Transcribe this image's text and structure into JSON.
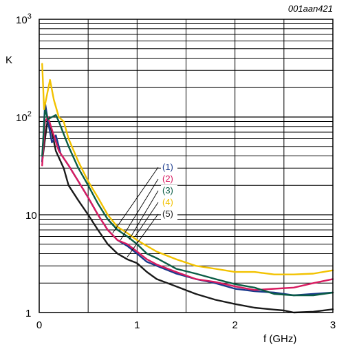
{
  "chart_data": {
    "type": "line",
    "figure_code": "001aan421",
    "xlabel": "f (GHz)",
    "ylabel": "K",
    "xlim": [
      0,
      3
    ],
    "ylim": [
      1,
      1000
    ],
    "yscale": "log",
    "grid": true,
    "x_ticks": [
      {
        "value": 0,
        "label": "0"
      },
      {
        "value": 1,
        "label": "1"
      },
      {
        "value": 2,
        "label": "2"
      },
      {
        "value": 3,
        "label": "3"
      }
    ],
    "y_ticks": [
      {
        "value": 1,
        "label": "1"
      },
      {
        "value": 10,
        "label": "10"
      },
      {
        "value": 100,
        "label": "10",
        "exp": "2"
      },
      {
        "value": 1000,
        "label": "10",
        "exp": "3"
      }
    ],
    "series": [
      {
        "name": "(1)",
        "color": "#1a3a8c",
        "x": [
          0.03,
          0.06,
          0.09,
          0.13,
          0.17,
          0.22,
          0.3,
          0.4,
          0.5,
          0.6,
          0.7,
          0.8,
          0.9,
          1.0,
          1.1,
          1.2,
          1.4,
          1.6,
          1.8,
          2.0,
          2.2,
          2.4,
          2.6,
          2.8,
          3.0
        ],
        "y": [
          35,
          140,
          90,
          55,
          65,
          42,
          32,
          22,
          15,
          10,
          7,
          5.5,
          4.8,
          4.0,
          3.3,
          3.0,
          2.5,
          2.2,
          2.0,
          1.75,
          1.65,
          1.6,
          1.5,
          1.55,
          1.6
        ]
      },
      {
        "name": "(2)",
        "color": "#d81b60",
        "x": [
          0.03,
          0.06,
          0.09,
          0.12,
          0.16,
          0.2,
          0.3,
          0.4,
          0.5,
          0.6,
          0.7,
          0.8,
          0.9,
          1.0,
          1.1,
          1.2,
          1.4,
          1.6,
          1.8,
          2.0,
          2.2,
          2.4,
          2.6,
          2.8,
          3.0
        ],
        "y": [
          32,
          90,
          100,
          80,
          60,
          45,
          32,
          22,
          15,
          10,
          7,
          5.5,
          5.0,
          4.2,
          3.5,
          3.1,
          2.6,
          2.2,
          2.05,
          1.85,
          1.7,
          1.75,
          1.8,
          2.0,
          2.2
        ]
      },
      {
        "name": "(3)",
        "color": "#0a5c45",
        "x": [
          0.03,
          0.06,
          0.09,
          0.13,
          0.17,
          0.2,
          0.3,
          0.4,
          0.5,
          0.6,
          0.7,
          0.8,
          0.9,
          1.0,
          1.1,
          1.2,
          1.4,
          1.6,
          1.8,
          2.0,
          2.2,
          2.4,
          2.6,
          2.8,
          3.0
        ],
        "y": [
          40,
          120,
          95,
          100,
          105,
          90,
          50,
          30,
          20,
          13,
          9,
          7,
          6,
          5,
          4,
          3.6,
          2.8,
          2.5,
          2.2,
          1.95,
          1.8,
          1.55,
          1.5,
          1.5,
          1.6
        ]
      },
      {
        "name": "(4)",
        "color": "#f2c200",
        "x": [
          0.03,
          0.05,
          0.08,
          0.11,
          0.15,
          0.2,
          0.25,
          0.3,
          0.4,
          0.5,
          0.6,
          0.7,
          0.8,
          0.9,
          1.0,
          1.1,
          1.2,
          1.4,
          1.6,
          1.8,
          2.0,
          2.2,
          2.4,
          2.6,
          2.8,
          3.0
        ],
        "y": [
          350,
          120,
          170,
          240,
          150,
          100,
          90,
          60,
          35,
          22,
          15,
          10,
          7.5,
          6.5,
          5.5,
          4.8,
          4.2,
          3.5,
          3.0,
          2.8,
          2.6,
          2.6,
          2.45,
          2.45,
          2.5,
          2.7
        ]
      },
      {
        "name": "(5)",
        "color": "#1a1a1a",
        "x": [
          0.03,
          0.06,
          0.09,
          0.13,
          0.17,
          0.25,
          0.3,
          0.4,
          0.5,
          0.6,
          0.7,
          0.8,
          0.9,
          1.0,
          1.1,
          1.2,
          1.4,
          1.6,
          1.8,
          2.0,
          2.2,
          2.4,
          2.5,
          2.6,
          2.8,
          3.0
        ],
        "y": [
          35,
          60,
          100,
          70,
          45,
          30,
          20,
          14,
          10,
          7,
          5,
          4,
          3.5,
          3.2,
          2.6,
          2.2,
          1.85,
          1.55,
          1.35,
          1.22,
          1.12,
          1.07,
          1.05,
          1.0,
          1.02,
          1.08
        ]
      }
    ]
  }
}
